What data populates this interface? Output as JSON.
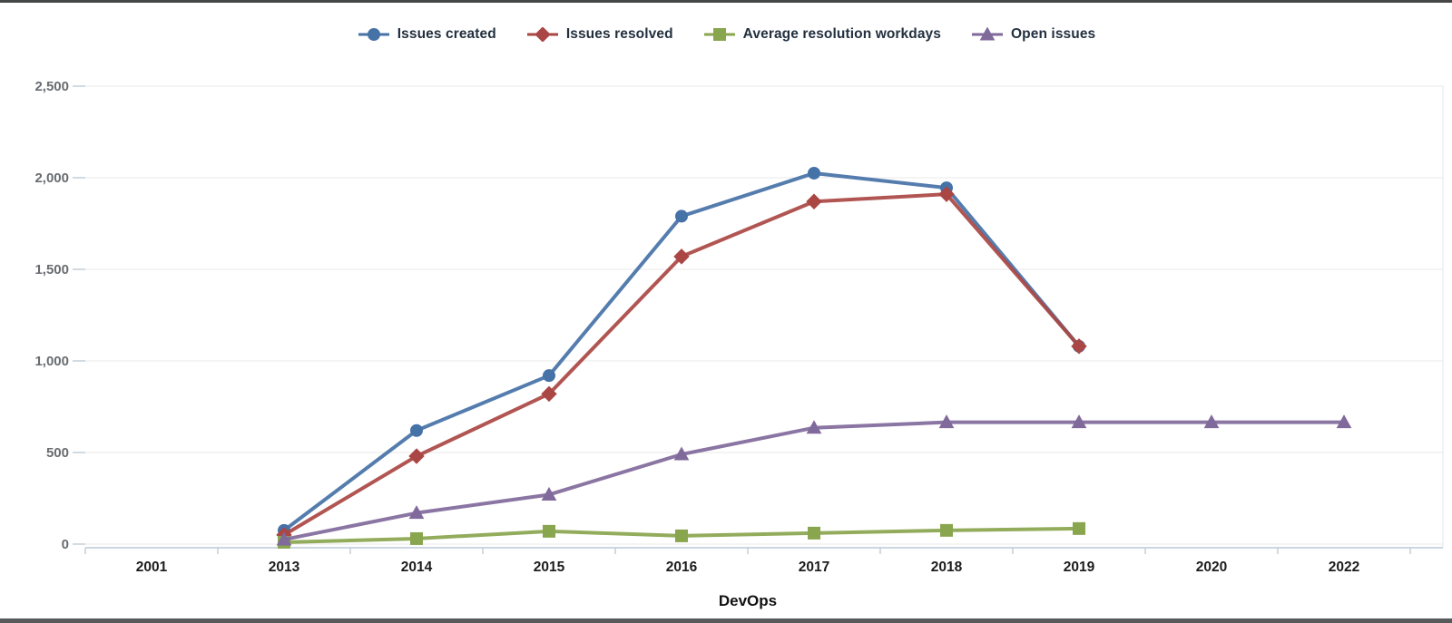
{
  "chart_data": {
    "type": "line",
    "categories": [
      "2001",
      "2013",
      "2014",
      "2015",
      "2016",
      "2017",
      "2018",
      "2019",
      "2020",
      "2022"
    ],
    "series": [
      {
        "name": "Issues created",
        "color": "#4572A7",
        "marker": "circle",
        "values": [
          null,
          75,
          620,
          920,
          1790,
          2025,
          1945,
          1080,
          null,
          null
        ]
      },
      {
        "name": "Issues resolved",
        "color": "#AA4643",
        "marker": "diamond",
        "values": [
          null,
          50,
          480,
          820,
          1570,
          1870,
          1910,
          1080,
          null,
          null
        ]
      },
      {
        "name": "Average resolution workdays",
        "color": "#89A54E",
        "marker": "square",
        "values": [
          null,
          10,
          30,
          70,
          45,
          60,
          75,
          85,
          null,
          null
        ]
      },
      {
        "name": "Open issues",
        "color": "#80699B",
        "marker": "triangle",
        "values": [
          null,
          25,
          170,
          270,
          490,
          635,
          665,
          665,
          665,
          665
        ]
      }
    ],
    "xlabel": "DevOps",
    "ylabel": "",
    "ylim": [
      0,
      2500
    ],
    "y_ticks": [
      0,
      500,
      1000,
      1500,
      2000,
      2500
    ],
    "y_tick_labels": [
      "0",
      "500",
      "1,000",
      "1,500",
      "2,000",
      "2,500"
    ],
    "grid": true,
    "legend_position": "top"
  },
  "style": {
    "grid_color": "#e8e8e8",
    "axis_line_color": "#bcc8d6",
    "tick_color": "#c3cdd9",
    "y_label_color": "#686c70",
    "x_label_color": "#1c1c1c",
    "legend_text_color": "#23303f",
    "frame_color": "#58595b"
  }
}
